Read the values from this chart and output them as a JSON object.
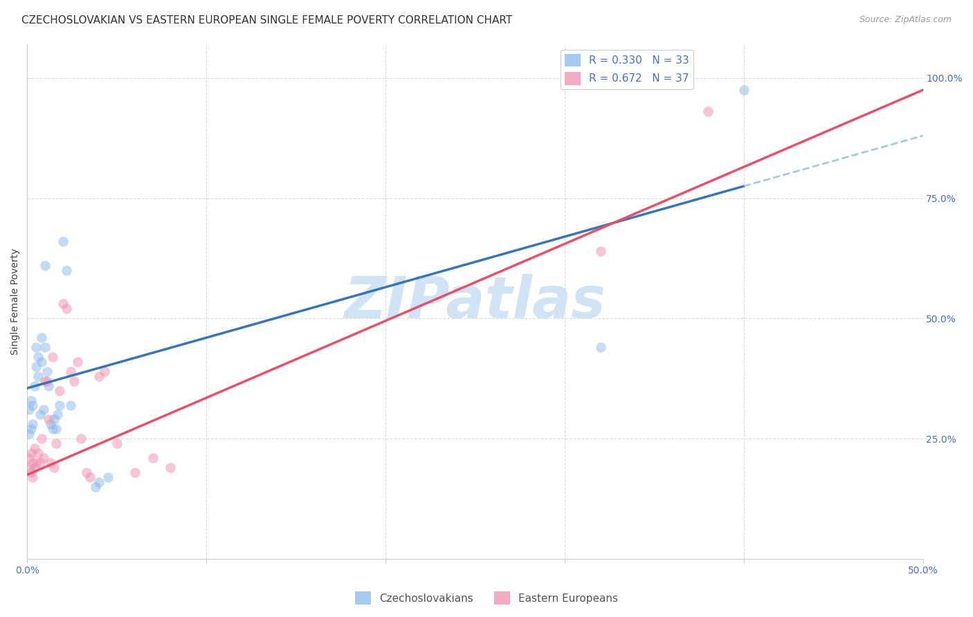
{
  "title": "CZECHOSLOVAKIAN VS EASTERN EUROPEAN SINGLE FEMALE POVERTY CORRELATION CHART",
  "source": "Source: ZipAtlas.com",
  "ylabel": "Single Female Poverty",
  "xlim": [
    0.0,
    0.5
  ],
  "ylim": [
    0.0,
    1.07
  ],
  "yticks": [
    0.0,
    0.25,
    0.5,
    0.75,
    1.0
  ],
  "xticks": [
    0.0,
    0.1,
    0.2,
    0.3,
    0.4,
    0.5
  ],
  "R_czech": 0.33,
  "N_czech": 33,
  "R_eastern": 0.672,
  "N_eastern": 37,
  "color_czech": "#89B8EA",
  "color_eastern": "#F08FAE",
  "color_line_czech": "#3575BB",
  "color_line_eastern": "#E8506A",
  "color_dashed": "#95C0E0",
  "color_axis_labels": "#4472C4",
  "color_grid": "#CCCCCC",
  "watermark": "ZIPatlas",
  "watermark_color": "#D0E4F5",
  "czech_line_x0": 0.0,
  "czech_line_y0": 0.355,
  "czech_line_x1": 0.5,
  "czech_line_y1": 0.88,
  "eastern_line_x0": 0.0,
  "eastern_line_y0": 0.175,
  "eastern_line_x1": 0.5,
  "eastern_line_y1": 0.975,
  "czech_x": [
    0.001,
    0.001,
    0.002,
    0.002,
    0.003,
    0.003,
    0.004,
    0.005,
    0.005,
    0.006,
    0.006,
    0.007,
    0.008,
    0.008,
    0.009,
    0.01,
    0.01,
    0.011,
    0.012,
    0.013,
    0.014,
    0.015,
    0.016,
    0.017,
    0.018,
    0.02,
    0.022,
    0.024,
    0.038,
    0.04,
    0.045,
    0.32,
    0.4
  ],
  "czech_y": [
    0.26,
    0.31,
    0.27,
    0.33,
    0.28,
    0.32,
    0.36,
    0.4,
    0.44,
    0.38,
    0.42,
    0.3,
    0.41,
    0.46,
    0.31,
    0.61,
    0.44,
    0.39,
    0.36,
    0.28,
    0.27,
    0.29,
    0.27,
    0.3,
    0.32,
    0.66,
    0.6,
    0.32,
    0.15,
    0.16,
    0.17,
    0.44,
    0.975
  ],
  "eastern_x": [
    0.001,
    0.001,
    0.002,
    0.002,
    0.003,
    0.003,
    0.004,
    0.004,
    0.005,
    0.006,
    0.007,
    0.008,
    0.009,
    0.01,
    0.011,
    0.012,
    0.013,
    0.014,
    0.015,
    0.016,
    0.018,
    0.02,
    0.022,
    0.024,
    0.026,
    0.028,
    0.03,
    0.033,
    0.035,
    0.04,
    0.043,
    0.05,
    0.06,
    0.07,
    0.08,
    0.32,
    0.38
  ],
  "eastern_y": [
    0.19,
    0.21,
    0.18,
    0.22,
    0.17,
    0.2,
    0.19,
    0.23,
    0.2,
    0.22,
    0.2,
    0.25,
    0.21,
    0.37,
    0.37,
    0.29,
    0.2,
    0.42,
    0.19,
    0.24,
    0.35,
    0.53,
    0.52,
    0.39,
    0.37,
    0.41,
    0.25,
    0.18,
    0.17,
    0.38,
    0.39,
    0.24,
    0.18,
    0.21,
    0.19,
    0.64,
    0.93
  ],
  "title_fontsize": 11,
  "axis_label_fontsize": 10,
  "tick_fontsize": 10,
  "legend_fontsize": 11,
  "marker_size": 110,
  "marker_alpha": 0.5
}
